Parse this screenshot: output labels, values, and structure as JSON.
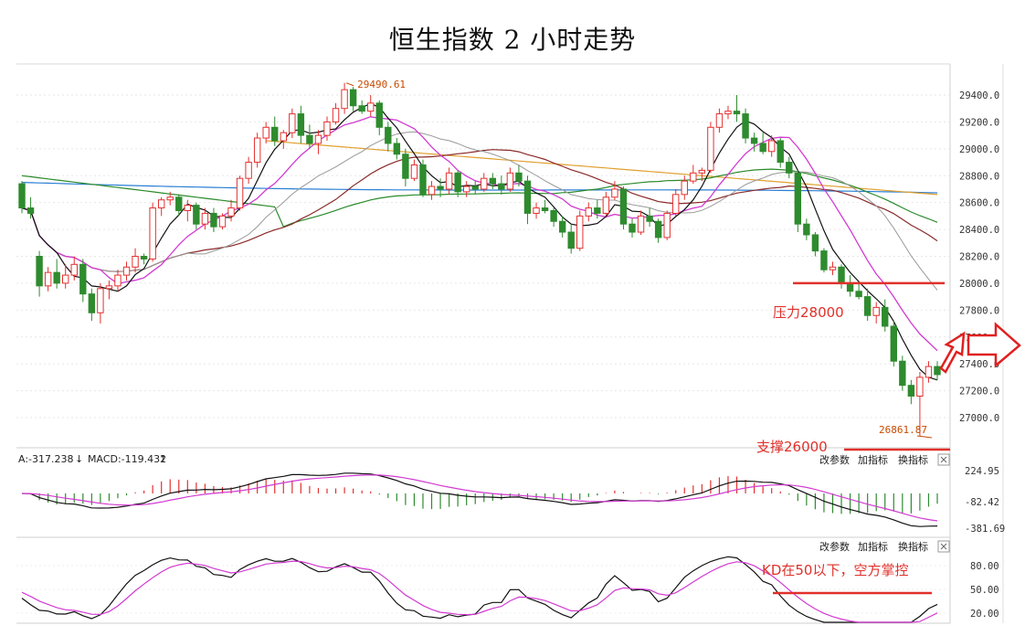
{
  "title": "恒生指数 2 小时走势",
  "colors": {
    "up": "#e53030",
    "down": "#2e8b2e",
    "ma5": "#111111",
    "ma10": "#d23ad2",
    "ma20": "#999999",
    "ma30": "#8b2a2a",
    "ma60": "#2a8a2a",
    "ma120": "#2a7fd4",
    "ma250": "#e0a030",
    "annotation": "#e0302a",
    "macd_dif": "#111111",
    "macd_dea": "#d23ad2",
    "kd_k": "#111111",
    "kd_d": "#d23ad2"
  },
  "main_panel": {
    "y_ticks": [
      "29400.0",
      "29200.0",
      "29000.0",
      "28800.0",
      "28600.0",
      "28400.0",
      "28200.0",
      "28000.0",
      "27800.0",
      "27600.0",
      "27400.0",
      "27200.0",
      "27000.0"
    ],
    "high_label": "29490.61",
    "low_label": "26861.87",
    "resistance_label": "压力28000",
    "support_label": "支撑26000"
  },
  "macd_panel": {
    "header_left": "A:-317.238",
    "header_macd": "MACD:-119.432",
    "y_ticks": [
      "224.95",
      "-82.42",
      "-381.69"
    ],
    "controls": [
      "改参数",
      "加指标",
      "换指标"
    ]
  },
  "kd_panel": {
    "y_ticks": [
      "80.00",
      "50.00",
      "20.00"
    ],
    "controls": [
      "改参数",
      "加指标",
      "换指标"
    ],
    "annotation": "KD在50以下，空方掌控"
  },
  "chart_data": {
    "type": "candlestick",
    "title": "恒生指数 2 小时走势",
    "y_range": [
      26861.87,
      29490.61
    ],
    "candles": [
      [
        28740,
        28760,
        28520,
        28560
      ],
      [
        28560,
        28640,
        28480,
        28520
      ],
      [
        28200,
        28240,
        27900,
        27980
      ],
      [
        27980,
        28120,
        27940,
        28080
      ],
      [
        28080,
        28180,
        27960,
        28000
      ],
      [
        28000,
        28140,
        27960,
        28060
      ],
      [
        28060,
        28200,
        28020,
        28140
      ],
      [
        28140,
        28180,
        27860,
        27920
      ],
      [
        27920,
        27960,
        27720,
        27780
      ],
      [
        27780,
        28000,
        27700,
        27960
      ],
      [
        27960,
        28020,
        27880,
        27980
      ],
      [
        27980,
        28100,
        27940,
        28060
      ],
      [
        28060,
        28160,
        28020,
        28120
      ],
      [
        28120,
        28260,
        28080,
        28200
      ],
      [
        28200,
        28220,
        28140,
        28180
      ],
      [
        28180,
        28600,
        28160,
        28560
      ],
      [
        28560,
        28640,
        28500,
        28620
      ],
      [
        28620,
        28680,
        28580,
        28640
      ],
      [
        28640,
        28660,
        28500,
        28540
      ],
      [
        28540,
        28620,
        28460,
        28580
      ],
      [
        28580,
        28600,
        28400,
        28440
      ],
      [
        28440,
        28560,
        28400,
        28520
      ],
      [
        28520,
        28560,
        28380,
        28420
      ],
      [
        28420,
        28520,
        28400,
        28500
      ],
      [
        28500,
        28620,
        28460,
        28560
      ],
      [
        28560,
        28800,
        28540,
        28780
      ],
      [
        28780,
        28940,
        28740,
        28900
      ],
      [
        28900,
        29120,
        28860,
        29080
      ],
      [
        29080,
        29200,
        29040,
        29160
      ],
      [
        29160,
        29240,
        29020,
        29060
      ],
      [
        29060,
        29140,
        29000,
        29120
      ],
      [
        29120,
        29300,
        29080,
        29260
      ],
      [
        29260,
        29320,
        29040,
        29100
      ],
      [
        29100,
        29180,
        29000,
        29040
      ],
      [
        29040,
        29140,
        28960,
        29100
      ],
      [
        29100,
        29240,
        29060,
        29200
      ],
      [
        29200,
        29340,
        29180,
        29300
      ],
      [
        29300,
        29490,
        29260,
        29440
      ],
      [
        29440,
        29460,
        29280,
        29320
      ],
      [
        29320,
        29360,
        29260,
        29280
      ],
      [
        29280,
        29400,
        29240,
        29340
      ],
      [
        29340,
        29360,
        29100,
        29160
      ],
      [
        29160,
        29200,
        28980,
        29040
      ],
      [
        29040,
        29080,
        28920,
        28960
      ],
      [
        28960,
        29000,
        28720,
        28780
      ],
      [
        28780,
        28920,
        28760,
        28880
      ],
      [
        28880,
        28920,
        28640,
        28660
      ],
      [
        28660,
        28760,
        28620,
        28720
      ],
      [
        28720,
        28780,
        28640,
        28700
      ],
      [
        28700,
        28860,
        28660,
        28820
      ],
      [
        28820,
        28840,
        28640,
        28680
      ],
      [
        28680,
        28760,
        28640,
        28720
      ],
      [
        28720,
        28760,
        28660,
        28700
      ],
      [
        28700,
        28820,
        28680,
        28780
      ],
      [
        28780,
        28820,
        28700,
        28740
      ],
      [
        28740,
        28800,
        28660,
        28700
      ],
      [
        28700,
        28860,
        28680,
        28820
      ],
      [
        28820,
        28880,
        28720,
        28760
      ],
      [
        28760,
        28800,
        28440,
        28520
      ],
      [
        28520,
        28600,
        28480,
        28560
      ],
      [
        28560,
        28620,
        28520,
        28540
      ],
      [
        28540,
        28560,
        28420,
        28460
      ],
      [
        28460,
        28500,
        28340,
        28380
      ],
      [
        28380,
        28440,
        28220,
        28260
      ],
      [
        28260,
        28540,
        28240,
        28500
      ],
      [
        28500,
        28600,
        28460,
        28560
      ],
      [
        28560,
        28620,
        28480,
        28520
      ],
      [
        28520,
        28680,
        28500,
        28640
      ],
      [
        28640,
        28760,
        28620,
        28700
      ],
      [
        28700,
        28720,
        28400,
        28440
      ],
      [
        28440,
        28480,
        28340,
        28380
      ],
      [
        28380,
        28540,
        28360,
        28500
      ],
      [
        28500,
        28560,
        28420,
        28460
      ],
      [
        28460,
        28480,
        28300,
        28340
      ],
      [
        28340,
        28540,
        28320,
        28520
      ],
      [
        28520,
        28700,
        28500,
        28660
      ],
      [
        28660,
        28800,
        28620,
        28760
      ],
      [
        28760,
        28880,
        28740,
        28820
      ],
      [
        28820,
        28860,
        28760,
        28840
      ],
      [
        28840,
        29200,
        28820,
        29160
      ],
      [
        29160,
        29300,
        29120,
        29260
      ],
      [
        29260,
        29320,
        29220,
        29280
      ],
      [
        29280,
        29400,
        29200,
        29260
      ],
      [
        29260,
        29300,
        29040,
        29080
      ],
      [
        29080,
        29120,
        28980,
        29040
      ],
      [
        29040,
        29120,
        28960,
        28980
      ],
      [
        28980,
        29100,
        28940,
        29060
      ],
      [
        29060,
        29080,
        28860,
        28900
      ],
      [
        28900,
        28940,
        28780,
        28820
      ],
      [
        28820,
        28840,
        28380,
        28440
      ],
      [
        28440,
        28480,
        28320,
        28360
      ],
      [
        28360,
        28380,
        28200,
        28240
      ],
      [
        28240,
        28260,
        28080,
        28100
      ],
      [
        28100,
        28160,
        28060,
        28120
      ],
      [
        28120,
        28140,
        27960,
        28000
      ],
      [
        28000,
        28060,
        27900,
        27940
      ],
      [
        27940,
        28000,
        27880,
        27900
      ],
      [
        27900,
        27960,
        27720,
        27760
      ],
      [
        27760,
        27860,
        27700,
        27820
      ],
      [
        27820,
        27880,
        27640,
        27680
      ],
      [
        27680,
        27720,
        27380,
        27420
      ],
      [
        27420,
        27460,
        27200,
        27240
      ],
      [
        27240,
        27280,
        27100,
        27160
      ],
      [
        27160,
        27340,
        26862,
        27300
      ],
      [
        27300,
        27420,
        27260,
        27380
      ],
      [
        27380,
        27420,
        27280,
        27320
      ]
    ],
    "levels": {
      "resistance": 28000,
      "support": 26000
    },
    "macd": {
      "y_ticks": [
        224.95,
        -82.42,
        -381.69
      ]
    },
    "kd": {
      "y_ticks": [
        80,
        50,
        20
      ]
    }
  }
}
